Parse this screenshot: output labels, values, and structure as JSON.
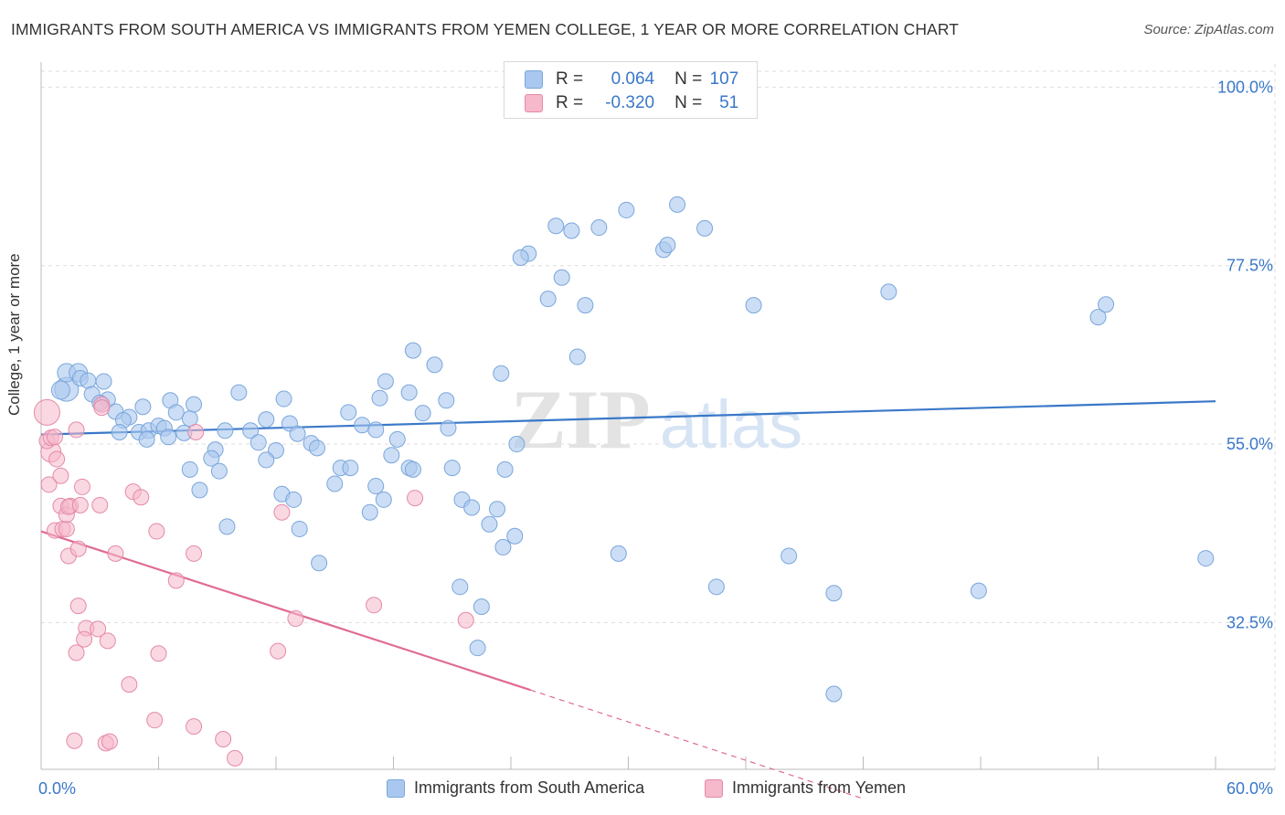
{
  "header": {
    "title": "IMMIGRANTS FROM SOUTH AMERICA VS IMMIGRANTS FROM YEMEN COLLEGE, 1 YEAR OR MORE CORRELATION CHART",
    "source": "Source: ZipAtlas.com"
  },
  "legend_top": {
    "rows": [
      {
        "r_label": "R =",
        "r_value": "0.064",
        "n_label": "N =",
        "n_value": "107"
      },
      {
        "r_label": "R =",
        "r_value": "-0.320",
        "n_label": "N =",
        "n_value": "51"
      }
    ]
  },
  "watermark": {
    "zip": "ZIP",
    "atlas": "atlas"
  },
  "colors": {
    "series_a_fill": "#aac8ef",
    "series_a_stroke": "#7aa6dc",
    "series_a_line": "#3a78c9",
    "series_b_fill": "#f6b8cb",
    "series_b_stroke": "#e48aa8",
    "series_b_line": "#e06b93",
    "grid": "#dddddd",
    "axis_label": "#3a78c9"
  },
  "chart_data": {
    "type": "scatter",
    "title": "IMMIGRANTS FROM SOUTH AMERICA VS IMMIGRANTS FROM YEMEN COLLEGE, 1 YEAR OR MORE CORRELATION CHART",
    "xlabel": "",
    "ylabel": "College, 1 year or more",
    "xlim": [
      0,
      60
    ],
    "ylim": [
      14,
      102
    ],
    "x_tick_labels": [
      "0.0%",
      "60.0%"
    ],
    "y_ticks": [
      32.5,
      55.0,
      77.5,
      100.0
    ],
    "y_tick_labels": [
      "32.5%",
      "55.0%",
      "77.5%",
      "100.0%"
    ],
    "legend": [
      "Immigrants from South America",
      "Immigrants from Yemen"
    ],
    "series": [
      {
        "name": "Immigrants from South America",
        "r": 0.064,
        "n": 107,
        "trend": {
          "x": [
            0,
            60
          ],
          "y": [
            56.2,
            60.4
          ]
        },
        "points": [
          [
            1.3,
            61.9
          ],
          [
            1.0,
            61.8
          ],
          [
            1.3,
            64.0
          ],
          [
            1.9,
            64.0
          ],
          [
            2.0,
            63.3
          ],
          [
            2.4,
            63.0
          ],
          [
            3.2,
            62.9
          ],
          [
            2.6,
            61.3
          ],
          [
            3.4,
            60.6
          ],
          [
            3.0,
            60.2
          ],
          [
            3.8,
            59.1
          ],
          [
            4.5,
            58.4
          ],
          [
            4.2,
            58.0
          ],
          [
            5.2,
            59.7
          ],
          [
            6.6,
            60.5
          ],
          [
            7.8,
            60.0
          ],
          [
            4.0,
            56.5
          ],
          [
            5.0,
            56.5
          ],
          [
            5.5,
            56.7
          ],
          [
            6.0,
            57.3
          ],
          [
            6.3,
            57.0
          ],
          [
            5.4,
            55.6
          ],
          [
            6.5,
            55.9
          ],
          [
            7.3,
            56.4
          ],
          [
            7.6,
            58.2
          ],
          [
            6.9,
            59.0
          ],
          [
            10.1,
            61.5
          ],
          [
            12.4,
            60.7
          ],
          [
            11.5,
            58.1
          ],
          [
            12.7,
            57.6
          ],
          [
            9.4,
            56.7
          ],
          [
            10.7,
            56.7
          ],
          [
            11.1,
            55.2
          ],
          [
            12.0,
            54.2
          ],
          [
            11.5,
            53.0
          ],
          [
            13.1,
            56.3
          ],
          [
            13.8,
            55.1
          ],
          [
            14.1,
            54.5
          ],
          [
            8.9,
            54.3
          ],
          [
            8.7,
            53.2
          ],
          [
            7.6,
            51.8
          ],
          [
            9.1,
            51.6
          ],
          [
            8.1,
            49.2
          ],
          [
            9.5,
            44.6
          ],
          [
            12.3,
            48.7
          ],
          [
            12.9,
            48.0
          ],
          [
            13.2,
            44.3
          ],
          [
            14.2,
            40.0
          ],
          [
            15.3,
            52.0
          ],
          [
            15.0,
            50.0
          ],
          [
            15.8,
            52.0
          ],
          [
            17.1,
            49.7
          ],
          [
            16.8,
            46.4
          ],
          [
            17.5,
            48.0
          ],
          [
            15.7,
            59.0
          ],
          [
            16.4,
            57.4
          ],
          [
            17.1,
            56.8
          ],
          [
            17.3,
            60.8
          ],
          [
            17.6,
            62.9
          ],
          [
            18.2,
            55.6
          ],
          [
            17.9,
            53.6
          ],
          [
            18.8,
            52.0
          ],
          [
            19.0,
            51.8
          ],
          [
            18.8,
            61.5
          ],
          [
            19.5,
            58.9
          ],
          [
            20.1,
            65.0
          ],
          [
            20.7,
            60.5
          ],
          [
            20.8,
            57.0
          ],
          [
            21.0,
            52.0
          ],
          [
            21.5,
            48.0
          ],
          [
            21.4,
            37.0
          ],
          [
            22.0,
            47.0
          ],
          [
            22.5,
            34.5
          ],
          [
            22.3,
            29.3
          ],
          [
            22.9,
            44.9
          ],
          [
            23.6,
            42.0
          ],
          [
            23.3,
            46.8
          ],
          [
            24.2,
            43.4
          ],
          [
            23.7,
            51.8
          ],
          [
            23.5,
            63.9
          ],
          [
            24.3,
            55.0
          ],
          [
            24.9,
            79.0
          ],
          [
            24.5,
            78.5
          ],
          [
            26.3,
            82.5
          ],
          [
            25.9,
            73.3
          ],
          [
            26.6,
            76.0
          ],
          [
            27.1,
            81.9
          ],
          [
            27.8,
            72.5
          ],
          [
            27.4,
            66.0
          ],
          [
            28.5,
            82.3
          ],
          [
            29.9,
            84.5
          ],
          [
            29.5,
            41.2
          ],
          [
            31.8,
            79.5
          ],
          [
            32.5,
            85.2
          ],
          [
            32.0,
            80.1
          ],
          [
            33.9,
            82.2
          ],
          [
            34.5,
            37.0
          ],
          [
            36.4,
            72.5
          ],
          [
            38.2,
            40.9
          ],
          [
            40.5,
            36.2
          ],
          [
            40.5,
            23.5
          ],
          [
            43.3,
            74.2
          ],
          [
            47.9,
            36.5
          ],
          [
            54.0,
            71.0
          ],
          [
            54.4,
            72.6
          ],
          [
            59.5,
            40.6
          ],
          [
            19.0,
            66.8
          ]
        ]
      },
      {
        "name": "Immigrants from Yemen",
        "r": -0.32,
        "n": 51,
        "trend": {
          "x": [
            0,
            25
          ],
          "y": [
            44.0,
            24.0
          ],
          "dashed_to": {
            "x": 42,
            "y": 10.3
          }
        },
        "points": [
          [
            0.3,
            59.0
          ],
          [
            0.5,
            54.0
          ],
          [
            0.3,
            55.4
          ],
          [
            0.5,
            55.8
          ],
          [
            0.8,
            53.1
          ],
          [
            0.4,
            49.9
          ],
          [
            0.7,
            44.1
          ],
          [
            1.0,
            51.0
          ],
          [
            1.0,
            47.2
          ],
          [
            1.1,
            44.3
          ],
          [
            1.3,
            44.3
          ],
          [
            1.3,
            46.1
          ],
          [
            1.5,
            47.2
          ],
          [
            1.4,
            47.1
          ],
          [
            2.1,
            49.6
          ],
          [
            2.0,
            47.3
          ],
          [
            1.4,
            40.9
          ],
          [
            1.9,
            41.8
          ],
          [
            3.0,
            47.3
          ],
          [
            3.1,
            60.0
          ],
          [
            3.8,
            41.2
          ],
          [
            4.7,
            49.0
          ],
          [
            5.1,
            48.3
          ],
          [
            5.9,
            44.0
          ],
          [
            7.8,
            41.2
          ],
          [
            6.9,
            37.8
          ],
          [
            1.9,
            34.6
          ],
          [
            2.3,
            31.8
          ],
          [
            2.2,
            30.4
          ],
          [
            2.9,
            31.7
          ],
          [
            3.4,
            30.2
          ],
          [
            1.8,
            28.7
          ],
          [
            6.0,
            28.6
          ],
          [
            4.5,
            24.7
          ],
          [
            5.8,
            20.2
          ],
          [
            7.8,
            19.4
          ],
          [
            9.3,
            17.8
          ],
          [
            9.9,
            15.4
          ],
          [
            1.7,
            17.6
          ],
          [
            3.3,
            17.3
          ],
          [
            3.5,
            17.5
          ],
          [
            7.9,
            56.5
          ],
          [
            12.3,
            46.4
          ],
          [
            12.1,
            28.9
          ],
          [
            13.0,
            33.0
          ],
          [
            17.0,
            34.7
          ],
          [
            19.1,
            48.2
          ],
          [
            21.7,
            32.8
          ],
          [
            0.7,
            55.9
          ],
          [
            3.1,
            59.6
          ],
          [
            1.8,
            56.8
          ]
        ]
      }
    ]
  }
}
